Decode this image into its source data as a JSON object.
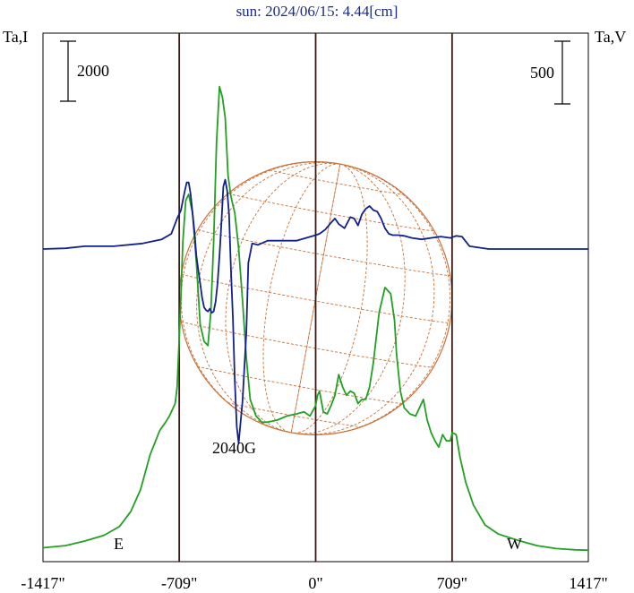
{
  "chart_data": {
    "type": "line",
    "title": "sun: 2024/06/15: 4.44[cm]",
    "left_axis_label": "Ta,I",
    "right_axis_label": "Ta,V",
    "x_unit": "arcsec",
    "x_ticks": [
      {
        "value": -1417,
        "label": "-1417\""
      },
      {
        "value": -709,
        "label": "-709\""
      },
      {
        "value": 0,
        "label": "0\""
      },
      {
        "value": 709,
        "label": "709\""
      },
      {
        "value": 1417,
        "label": "1417\""
      }
    ],
    "xlim": [
      -1417,
      1417
    ],
    "limb_lines": [
      -709,
      0,
      709
    ],
    "limb_arcsec": 709,
    "east_label": "E",
    "west_label": "W",
    "scale_bar_I": {
      "value": 2000,
      "label": "2000"
    },
    "scale_bar_V": {
      "value": 500,
      "label": "500"
    },
    "annotation": "2040G",
    "I_range": [
      0,
      12000
    ],
    "V_range": [
      -1550,
      1550
    ],
    "series": [
      {
        "color": "#22a022",
        "axis": "left",
        "x": [
          -1417,
          -1300,
          -1200,
          -1100,
          -1020,
          -960,
          -910,
          -860,
          -810,
          -780,
          -760,
          -730,
          -720,
          -705,
          -690,
          -675,
          -660,
          -640,
          -620,
          -600,
          -580,
          -560,
          -545,
          -530,
          -515,
          -500,
          -485,
          -470,
          -455,
          -440,
          -420,
          -400,
          -380,
          -360,
          -340,
          -310,
          -280,
          -250,
          -200,
          -150,
          -100,
          -60,
          -30,
          0,
          10,
          20,
          40,
          60,
          80,
          100,
          120,
          140,
          160,
          180,
          200,
          220,
          240,
          260,
          280,
          300,
          330,
          360,
          390,
          410,
          420,
          440,
          460,
          490,
          520,
          540,
          560,
          580,
          600,
          620,
          640,
          660,
          680,
          700,
          710,
          730,
          750,
          780,
          820,
          880,
          950,
          1050,
          1150,
          1250,
          1350,
          1417
        ],
        "y": [
          120,
          170,
          280,
          420,
          630,
          1000,
          1520,
          2370,
          2950,
          3150,
          3300,
          3600,
          4000,
          5600,
          7500,
          8500,
          8650,
          8200,
          7000,
          5500,
          5100,
          5000,
          5800,
          7500,
          9900,
          11250,
          11000,
          10500,
          9100,
          8600,
          8200,
          7350,
          6100,
          4700,
          3700,
          3300,
          3150,
          3150,
          3200,
          3300,
          3350,
          3400,
          3300,
          3550,
          3800,
          3900,
          3400,
          3350,
          3550,
          3800,
          4300,
          4000,
          3800,
          3900,
          3850,
          3600,
          3700,
          3700,
          4000,
          4600,
          5800,
          6400,
          6250,
          5600,
          4800,
          3900,
          3500,
          3350,
          3300,
          3500,
          3700,
          3200,
          2900,
          2700,
          2550,
          2850,
          2700,
          2700,
          2900,
          2850,
          2300,
          1700,
          1150,
          670,
          450,
          300,
          170,
          100,
          70,
          60
        ]
      },
      {
        "color": "#10208c",
        "axis": "right",
        "x": [
          -1417,
          -1300,
          -1200,
          -1050,
          -900,
          -800,
          -750,
          -720,
          -700,
          -690,
          -680,
          -670,
          -660,
          -650,
          -640,
          -630,
          -620,
          -610,
          -600,
          -590,
          -580,
          -570,
          -560,
          -550,
          -540,
          -530,
          -520,
          -510,
          -500,
          -490,
          -480,
          -470,
          -460,
          -450,
          -440,
          -430,
          -420,
          -410,
          -400,
          -380,
          -360,
          -350,
          -330,
          -300,
          -250,
          -200,
          -150,
          -100,
          -50,
          0,
          20,
          50,
          80,
          100,
          120,
          150,
          180,
          200,
          220,
          240,
          260,
          280,
          300,
          320,
          340,
          360,
          380,
          400,
          430,
          460,
          500,
          550,
          600,
          650,
          700,
          730,
          760,
          800,
          900,
          1000,
          1100,
          1200,
          1300,
          1417
        ],
        "y": [
          0,
          5,
          20,
          20,
          40,
          70,
          110,
          220,
          280,
          350,
          420,
          480,
          480,
          400,
          260,
          130,
          -50,
          -150,
          -250,
          -350,
          -420,
          -440,
          -450,
          -430,
          -460,
          -450,
          -380,
          -250,
          -50,
          180,
          450,
          500,
          420,
          250,
          -150,
          -500,
          -950,
          -1280,
          -1400,
          -1100,
          -600,
          -100,
          40,
          30,
          60,
          60,
          60,
          60,
          80,
          100,
          110,
          140,
          190,
          220,
          180,
          150,
          230,
          220,
          170,
          250,
          290,
          310,
          280,
          270,
          220,
          150,
          110,
          100,
          100,
          95,
          80,
          70,
          80,
          90,
          80,
          95,
          90,
          20,
          0,
          0,
          0,
          0,
          0,
          0
        ]
      }
    ]
  }
}
